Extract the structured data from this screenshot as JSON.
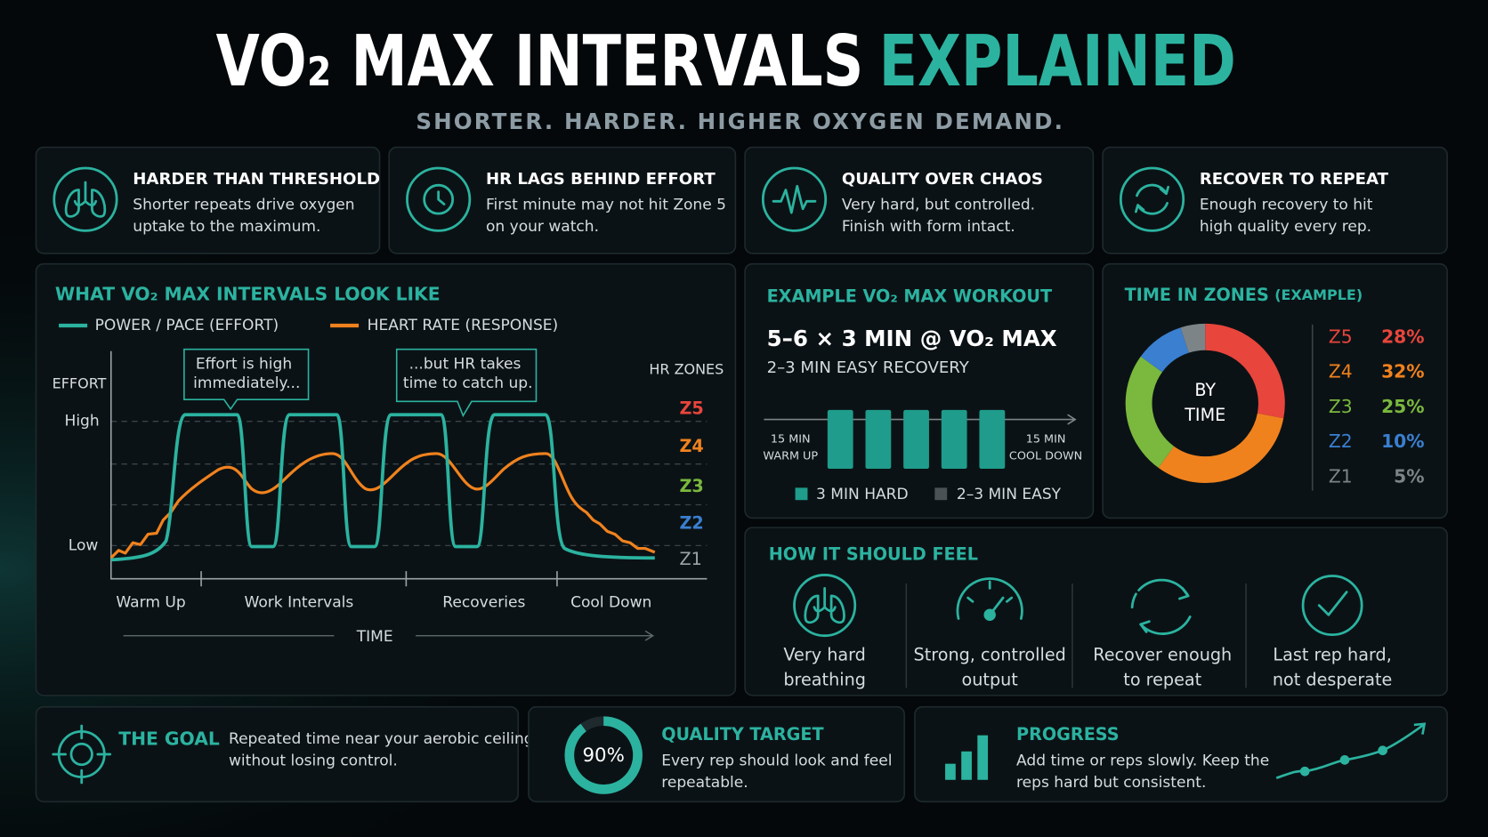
{
  "header": {
    "title": "VO₂ MAX INTERVALS",
    "title_accent": "EXPLAINED",
    "subtitle": "SHORTER. HARDER. HIGHER OXYGEN DEMAND."
  },
  "cards": [
    {
      "title": "HARDER THAN THRESHOLD",
      "lines": [
        "Shorter repeats drive oxygen",
        "uptake to the maximum."
      ]
    },
    {
      "title": "HR LAGS BEHIND EFFORT",
      "lines": [
        "First minute may not hit Zone 5",
        "on your watch."
      ]
    },
    {
      "title": "QUALITY OVER CHAOS",
      "lines": [
        "Very hard, but controlled.",
        "Finish with form intact."
      ]
    },
    {
      "title": "RECOVER TO REPEAT",
      "lines": [
        "Enough recovery to hit",
        "high quality every rep."
      ]
    }
  ],
  "effort": {
    "title": "WHAT VO₂ MAX INTERVALS LOOK LIKE",
    "legend": [
      "POWER / PACE (EFFORT)",
      "HEART RATE (RESPONSE)"
    ],
    "y_label": "EFFORT",
    "y_levels": [
      "High",
      "Low"
    ],
    "zones_label": "HR ZONES",
    "zones": [
      "Z5",
      "Z4",
      "Z3",
      "Z2",
      "Z1"
    ],
    "phases": [
      "Warm Up",
      "Work Intervals",
      "Recoveries",
      "Cool Down"
    ],
    "x_label": "TIME",
    "callouts": [
      [
        "Effort is high",
        "immediately..."
      ],
      [
        "...but HR takes",
        "time to catch up."
      ]
    ]
  },
  "workout": {
    "title": "EXAMPLE VO₂ MAX WORKOUT",
    "main": "5–6 × 3 MIN @ VO₂ MAX",
    "recovery": "2–3 MIN EASY RECOVERY",
    "start": [
      "15 MIN",
      "WARM UP"
    ],
    "end": [
      "15 MIN",
      "COOL DOWN"
    ],
    "legend": [
      "3 MIN HARD",
      "2–3 MIN EASY"
    ]
  },
  "chart_data": {
    "type": "donut",
    "title": "TIME IN ZONES",
    "subtitle": "(EXAMPLE)",
    "center_label": [
      "BY",
      "TIME"
    ],
    "categories": [
      "Z5",
      "Z4",
      "Z3",
      "Z2",
      "Z1"
    ],
    "values": [
      28,
      32,
      25,
      10,
      5
    ],
    "value_labels": [
      "28%",
      "32%",
      "25%",
      "10%",
      "5%"
    ],
    "colors": [
      "#e8453c",
      "#f0821e",
      "#7ab83e",
      "#3a7fd0",
      "#7d8488"
    ]
  },
  "feel": {
    "title": "HOW IT SHOULD FEEL",
    "items": [
      [
        "Very hard",
        "breathing"
      ],
      [
        "Strong, controlled",
        "output"
      ],
      [
        "Recover enough",
        "to repeat"
      ],
      [
        "Last rep hard,",
        "not desperate"
      ]
    ]
  },
  "bottom": {
    "goal": {
      "title": "THE GOAL",
      "lines": [
        "Repeated time near your aerobic ceiling",
        "without losing control."
      ]
    },
    "quality": {
      "value": 90,
      "value_label": "90%",
      "title": "QUALITY TARGET",
      "lines": [
        "Every rep should look and feel",
        "repeatable."
      ]
    },
    "progress": {
      "title": "PROGRESS",
      "lines": [
        "Add time or reps slowly. Keep the",
        "reps hard but consistent."
      ]
    }
  }
}
